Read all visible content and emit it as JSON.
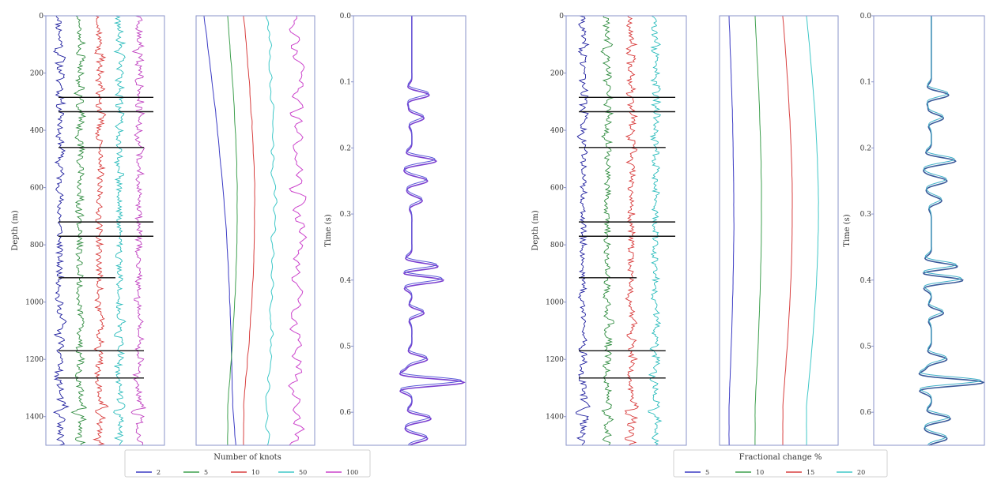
{
  "chart_data": [
    {
      "type": "line",
      "panel": "log-tracks-left",
      "ylabel": "Depth (m)",
      "y_ticks": [
        0,
        200,
        400,
        600,
        800,
        1000,
        1200,
        1400
      ],
      "ylim": [
        0,
        1500
      ],
      "y_inverted": true,
      "series": [
        {
          "color": "#1f1f9e"
        },
        {
          "color": "#2e8b3e"
        },
        {
          "color": "#d83a3a"
        },
        {
          "color": "#2bbcbc"
        },
        {
          "color": "#c040c0"
        }
      ]
    },
    {
      "type": "line",
      "panel": "knot-curves-left",
      "ylim": [
        0,
        1500
      ],
      "y_inverted": true,
      "series": [
        {
          "color": "#3b3bc4"
        },
        {
          "color": "#3fa04f"
        },
        {
          "color": "#d84040"
        },
        {
          "color": "#40c8c8"
        },
        {
          "color": "#cc44cc"
        }
      ]
    },
    {
      "type": "line",
      "panel": "seismogram-left",
      "ylabel": "Time (s)",
      "y_ticks": [
        "0.0",
        "0.1",
        "0.2",
        "0.3",
        "0.4",
        "0.5",
        "0.6"
      ],
      "ylim": [
        0,
        0.65
      ],
      "y_inverted": true,
      "series": [
        {
          "color": "#7a3fd0"
        },
        {
          "color": "#5a5ad8"
        }
      ]
    },
    {
      "type": "line",
      "panel": "log-tracks-right",
      "ylabel": "Depth (m)",
      "y_ticks": [
        0,
        200,
        400,
        600,
        800,
        1000,
        1200,
        1400
      ],
      "ylim": [
        0,
        1500
      ],
      "y_inverted": true,
      "series": [
        {
          "color": "#1f1f9e"
        },
        {
          "color": "#2e8b3e"
        },
        {
          "color": "#d83a3a"
        },
        {
          "color": "#2bbcbc"
        }
      ]
    },
    {
      "type": "line",
      "panel": "frac-curves-right",
      "ylim": [
        0,
        1500
      ],
      "y_inverted": true,
      "series": [
        {
          "color": "#3b3bc4"
        },
        {
          "color": "#3fa04f"
        },
        {
          "color": "#d84040"
        },
        {
          "color": "#40c8c8"
        }
      ]
    },
    {
      "type": "line",
      "panel": "seismogram-right",
      "ylabel": "Time (s)",
      "y_ticks": [
        "0.0",
        "0.1",
        "0.2",
        "0.3",
        "0.4",
        "0.5",
        "0.6"
      ],
      "ylim": [
        0,
        0.65
      ],
      "y_inverted": true,
      "series": [
        {
          "color": "#3a5a9a"
        },
        {
          "color": "#40b0c8"
        }
      ]
    }
  ],
  "legends": [
    {
      "title": "Number of knots",
      "entries": [
        {
          "label": "2",
          "color": "#3b3bc4"
        },
        {
          "label": "5",
          "color": "#3fa04f"
        },
        {
          "label": "10",
          "color": "#d84040"
        },
        {
          "label": "50",
          "color": "#40c8c8"
        },
        {
          "label": "100",
          "color": "#cc44cc"
        }
      ]
    },
    {
      "title": "Fractional change %",
      "entries": [
        {
          "label": "5",
          "color": "#3b3bc4"
        },
        {
          "label": "10",
          "color": "#3fa04f"
        },
        {
          "label": "15",
          "color": "#d84040"
        },
        {
          "label": "20",
          "color": "#40c8c8"
        }
      ]
    }
  ]
}
